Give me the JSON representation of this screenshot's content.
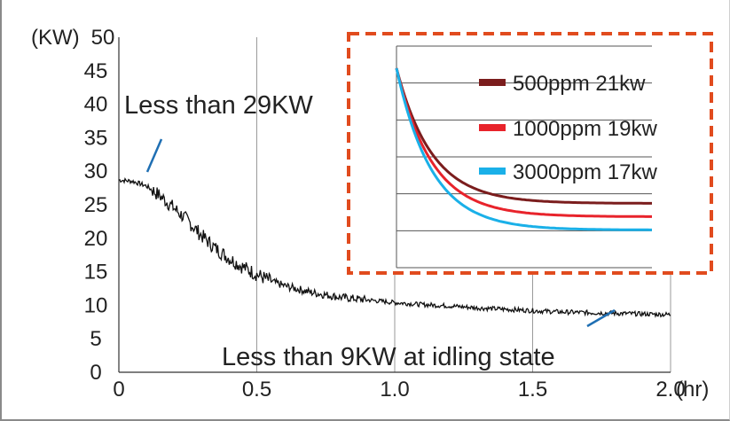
{
  "chart_data": [
    {
      "type": "line",
      "ylabel": "(KW)",
      "xlabel": "(hr)",
      "xlim": [
        0,
        2.0
      ],
      "ylim": [
        0,
        50
      ],
      "xticks": [
        "0",
        "0.5",
        "1.0",
        "1.5",
        "2.0"
      ],
      "yticks": [
        "0",
        "5",
        "10",
        "15",
        "20",
        "25",
        "30",
        "35",
        "40",
        "45",
        "50"
      ],
      "grid": "vertical",
      "series": [
        {
          "color": "#111111",
          "x": [
            0,
            0.05,
            0.1,
            0.15,
            0.2,
            0.25,
            0.3,
            0.35,
            0.4,
            0.45,
            0.5,
            0.55,
            0.6,
            0.7,
            0.8,
            0.9,
            1.0,
            1.1,
            1.2,
            1.3,
            1.4,
            1.5,
            1.6,
            1.7,
            1.8,
            1.9,
            2.0
          ],
          "y": [
            28.7,
            28.5,
            27.8,
            26.3,
            24.5,
            22.6,
            20.4,
            18.5,
            17.0,
            15.7,
            14.6,
            13.6,
            12.9,
            11.9,
            11.2,
            10.8,
            10.4,
            10.1,
            9.9,
            9.6,
            9.4,
            9.2,
            9.0,
            8.9,
            8.8,
            8.7,
            8.6
          ]
        }
      ],
      "annotations": [
        "Less than 29KW",
        "Less than 9KW at idling state"
      ]
    },
    {
      "type": "line",
      "inset": true,
      "legend": "top-right",
      "series": [
        {
          "name": "500ppm 21kw",
          "color": "#7b1d1d",
          "x": [
            0,
            0.1,
            0.2,
            0.3,
            0.4,
            0.5,
            0.6,
            0.8,
            1.0
          ],
          "y": [
            46,
            37.5,
            31.8,
            27.8,
            25.1,
            23.4,
            22.4,
            21.7,
            21.6
          ]
        },
        {
          "name": "1000ppm 19kw",
          "color": "#e8232b",
          "x": [
            0,
            0.1,
            0.2,
            0.3,
            0.4,
            0.5,
            0.6,
            0.8,
            1.0
          ],
          "y": [
            46,
            35.8,
            29.3,
            25.1,
            22.4,
            20.8,
            19.9,
            19.3,
            19.2
          ]
        },
        {
          "name": "3000ppm 17kw",
          "color": "#1ab0e8",
          "x": [
            0,
            0.1,
            0.2,
            0.3,
            0.4,
            0.5,
            0.6,
            0.8,
            1.0
          ],
          "y": [
            46,
            33.6,
            26.5,
            22.1,
            19.5,
            18.0,
            17.3,
            16.9,
            16.8
          ]
        }
      ]
    }
  ]
}
